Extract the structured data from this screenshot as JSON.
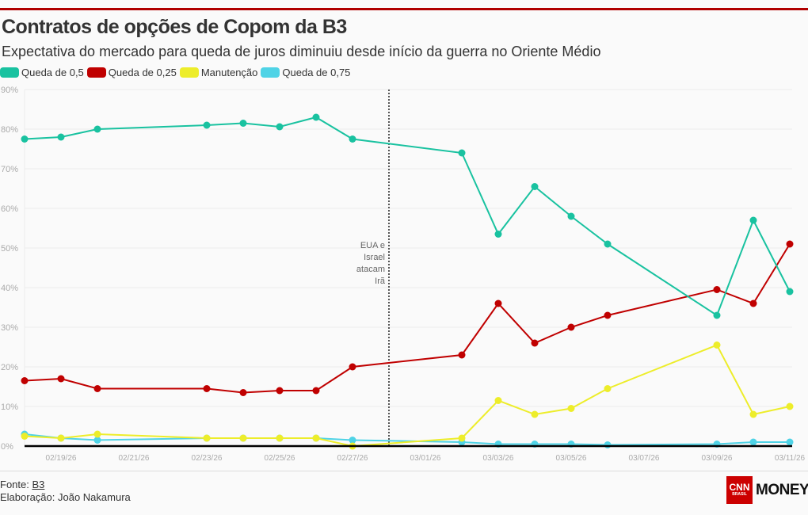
{
  "title": "Contratos de opções de Copom da B3",
  "subtitle": "Expectativa do mercado para queda de juros diminuiu desde início da guerra no Oriente Médio",
  "footer": {
    "source_label": "Fonte: ",
    "source": "B3",
    "credit": "Elaboração: João Nakamura"
  },
  "logo": {
    "brand": "CNN",
    "sub": "BRASIL",
    "product": "MONEY"
  },
  "chart_data": {
    "type": "line",
    "x": [
      "02/18/26",
      "02/19/26",
      "02/20/26",
      "02/23/26",
      "02/24/26",
      "02/25/26",
      "02/26/26",
      "02/27/26",
      "03/02/26",
      "03/03/26",
      "03/04/26",
      "03/05/26",
      "03/06/26",
      "03/09/26",
      "03/10/26",
      "03/11/26"
    ],
    "x_ticks": [
      "02/19/26",
      "02/21/26",
      "02/23/26",
      "02/25/26",
      "02/27/26",
      "03/01/26",
      "03/03/26",
      "03/05/26",
      "03/07/26",
      "03/09/26",
      "03/11/26"
    ],
    "y_ticks": [
      "0%",
      "10%",
      "20%",
      "30%",
      "40%",
      "50%",
      "60%",
      "70%",
      "80%",
      "90%"
    ],
    "ylim": [
      0,
      90
    ],
    "grid": true,
    "legend": "top-left",
    "series": [
      {
        "name": "Queda de 0,5",
        "color": "#19c2a0",
        "values": [
          77.5,
          78,
          80,
          81,
          81.5,
          80.6,
          83,
          77.5,
          74,
          53.5,
          65.5,
          58,
          51,
          33,
          57,
          39
        ]
      },
      {
        "name": "Queda de 0,25",
        "color": "#c00000",
        "values": [
          16.5,
          17,
          14.5,
          14.5,
          13.5,
          14,
          14,
          20,
          23,
          36,
          26,
          30,
          33,
          39.5,
          36,
          51
        ]
      },
      {
        "name": "Manutenção",
        "color": "#eded2a",
        "values": [
          2.5,
          2,
          3,
          2,
          2,
          2,
          2,
          0,
          2,
          11.5,
          8,
          9.5,
          14.5,
          25.5,
          8,
          10
        ]
      },
      {
        "name": "Queda de 0,75",
        "color": "#4fd3e6",
        "values": [
          3,
          2,
          1.5,
          2,
          2,
          2,
          2,
          1.5,
          1,
          0.5,
          0.5,
          0.5,
          0.3,
          0.5,
          1,
          1
        ]
      }
    ],
    "annotation": {
      "date": "02/28/26",
      "lines": [
        "EUA e",
        "Israel",
        "atacam",
        "Irã"
      ]
    }
  }
}
